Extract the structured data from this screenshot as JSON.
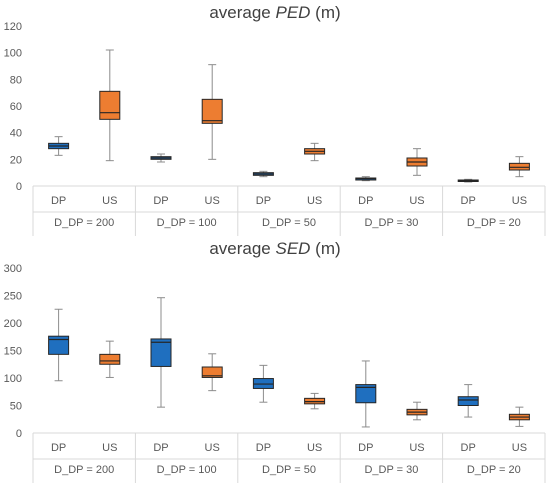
{
  "chart_data": [
    {
      "type": "boxplot",
      "title": {
        "prefix": "average ",
        "italic": "PED",
        "suffix": " (m)"
      },
      "ylim": [
        0,
        120
      ],
      "yticks": [
        0,
        20,
        40,
        60,
        80,
        100,
        120
      ],
      "grid": false,
      "groups": [
        "D_DP = 200",
        "D_DP = 100",
        "D_DP = 50",
        "D_DP = 30",
        "D_DP = 20"
      ],
      "categories": [
        "DP",
        "US"
      ],
      "colors": {
        "DP": "#1f6fbf",
        "US": "#ed7d31"
      },
      "boxes": [
        {
          "group": 0,
          "cat": "DP",
          "min": 23,
          "q1": 28,
          "median": 30,
          "q3": 32,
          "max": 37
        },
        {
          "group": 0,
          "cat": "US",
          "min": 19,
          "q1": 50,
          "median": 55,
          "q3": 71,
          "max": 102
        },
        {
          "group": 1,
          "cat": "DP",
          "min": 18,
          "q1": 20,
          "median": 21,
          "q3": 22,
          "max": 24
        },
        {
          "group": 1,
          "cat": "US",
          "min": 20,
          "q1": 47,
          "median": 49,
          "q3": 65,
          "max": 91
        },
        {
          "group": 2,
          "cat": "DP",
          "min": 7,
          "q1": 8,
          "median": 9,
          "q3": 10,
          "max": 11
        },
        {
          "group": 2,
          "cat": "US",
          "min": 19,
          "q1": 24,
          "median": 26,
          "q3": 28,
          "max": 32
        },
        {
          "group": 3,
          "cat": "DP",
          "min": 4,
          "q1": 4.5,
          "median": 5.5,
          "q3": 6,
          "max": 7
        },
        {
          "group": 3,
          "cat": "US",
          "min": 8,
          "q1": 15,
          "median": 18,
          "q3": 21,
          "max": 28
        },
        {
          "group": 4,
          "cat": "DP",
          "min": 3,
          "q1": 3.5,
          "median": 4,
          "q3": 4.5,
          "max": 5
        },
        {
          "group": 4,
          "cat": "US",
          "min": 7,
          "q1": 12,
          "median": 14,
          "q3": 17,
          "max": 22
        }
      ]
    },
    {
      "type": "boxplot",
      "title": {
        "prefix": "average ",
        "italic": "SED",
        "suffix": " (m)"
      },
      "ylim": [
        0,
        300
      ],
      "yticks": [
        0,
        50,
        100,
        150,
        200,
        250,
        300
      ],
      "grid": false,
      "groups": [
        "D_DP = 200",
        "D_DP = 100",
        "D_DP = 50",
        "D_DP = 30",
        "D_DP = 20"
      ],
      "categories": [
        "DP",
        "US"
      ],
      "colors": {
        "DP": "#1f6fbf",
        "US": "#ed7d31"
      },
      "boxes": [
        {
          "group": 0,
          "cat": "DP",
          "min": 95,
          "q1": 143,
          "median": 170,
          "q3": 176,
          "max": 225
        },
        {
          "group": 0,
          "cat": "US",
          "min": 101,
          "q1": 125,
          "median": 131,
          "q3": 143,
          "max": 167
        },
        {
          "group": 1,
          "cat": "DP",
          "min": 47,
          "q1": 121,
          "median": 165,
          "q3": 171,
          "max": 246
        },
        {
          "group": 1,
          "cat": "US",
          "min": 77,
          "q1": 101,
          "median": 104,
          "q3": 120,
          "max": 144
        },
        {
          "group": 2,
          "cat": "DP",
          "min": 56,
          "q1": 81,
          "median": 89,
          "q3": 99,
          "max": 123
        },
        {
          "group": 2,
          "cat": "US",
          "min": 44,
          "q1": 53,
          "median": 57,
          "q3": 63,
          "max": 72
        },
        {
          "group": 3,
          "cat": "DP",
          "min": 11,
          "q1": 55,
          "median": 83,
          "q3": 88,
          "max": 131
        },
        {
          "group": 3,
          "cat": "US",
          "min": 24,
          "q1": 33,
          "median": 38,
          "q3": 43,
          "max": 56
        },
        {
          "group": 4,
          "cat": "DP",
          "min": 29,
          "q1": 50,
          "median": 60,
          "q3": 66,
          "max": 88
        },
        {
          "group": 4,
          "cat": "US",
          "min": 12,
          "q1": 24,
          "median": 29,
          "q3": 34,
          "max": 47
        }
      ]
    }
  ]
}
